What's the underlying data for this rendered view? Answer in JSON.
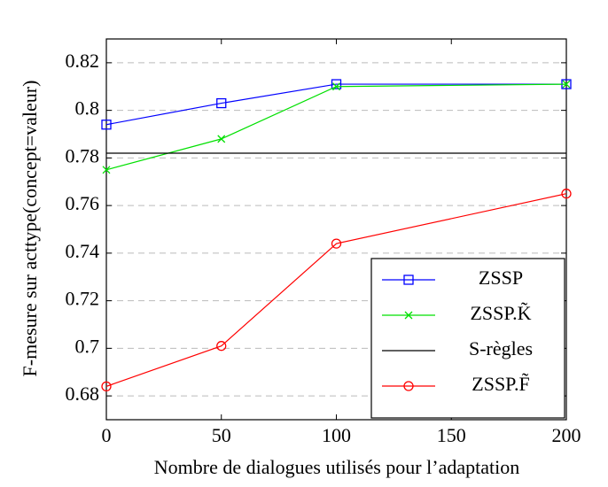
{
  "chart_data": {
    "type": "line",
    "x_label": "Nombre de dialogues utilisés pour l’adaptation",
    "y_label": "F-mesure sur acttype(concept=valeur)",
    "x": [
      0,
      50,
      100,
      200
    ],
    "series": [
      {
        "name": "ZSSP",
        "color": "#0000ff",
        "marker": "square",
        "values": [
          0.794,
          0.803,
          0.811,
          0.811
        ]
      },
      {
        "name": "ZSSP.K̃",
        "color": "#00e000",
        "marker": "x",
        "values": [
          0.775,
          0.788,
          0.81,
          0.811
        ]
      },
      {
        "name": "S-règles",
        "color": "#000000",
        "marker": "none",
        "values": [
          0.782,
          0.782,
          0.782,
          0.782
        ]
      },
      {
        "name": "ZSSP.F̃",
        "color": "#ff0000",
        "marker": "circle",
        "values": [
          0.684,
          0.701,
          0.744,
          0.765
        ]
      }
    ],
    "xlim": [
      0,
      200
    ],
    "xticks": [
      0,
      50,
      100,
      150,
      200
    ],
    "ylim": [
      0.67,
      0.83
    ],
    "yticks": [
      0.68,
      0.7,
      0.72,
      0.74,
      0.76,
      0.78,
      0.8,
      0.82
    ],
    "grid": true,
    "legend": "lower right"
  }
}
